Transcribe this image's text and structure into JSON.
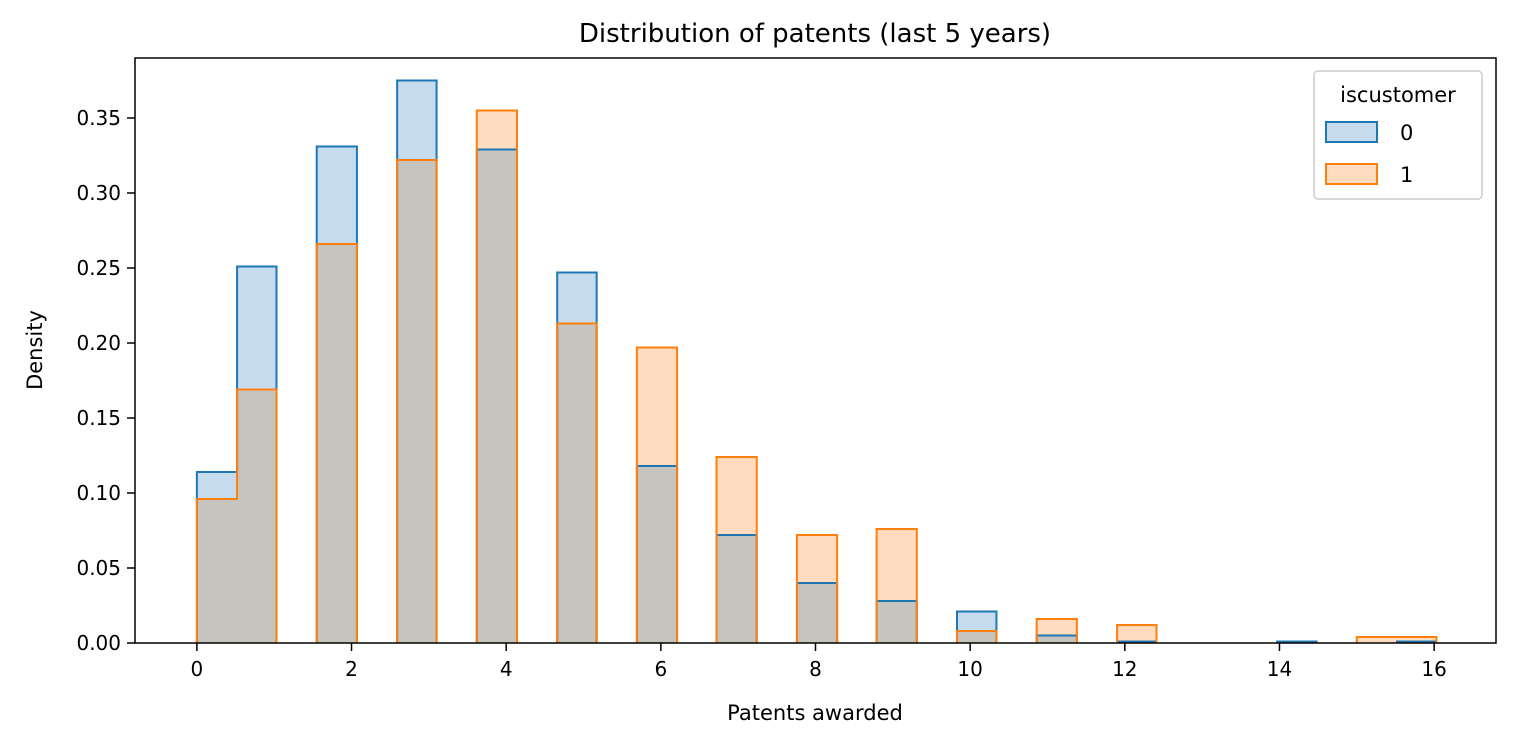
{
  "chart_data": {
    "type": "bar",
    "title": "Distribution of patents (last 5 years)",
    "xlabel": "Patents awarded",
    "ylabel": "Density",
    "xlim": [
      -0.8,
      16.8
    ],
    "ylim": [
      0,
      0.39
    ],
    "xticks": [
      "0",
      "2",
      "4",
      "6",
      "8",
      "10",
      "12",
      "14",
      "16"
    ],
    "xtick_values": [
      0,
      2,
      4,
      6,
      8,
      10,
      12,
      14,
      16
    ],
    "yticks": [
      "0.00",
      "0.05",
      "0.10",
      "0.15",
      "0.20",
      "0.25",
      "0.30",
      "0.35"
    ],
    "ytick_values": [
      0,
      0.05,
      0.1,
      0.15,
      0.2,
      0.25,
      0.3,
      0.35
    ],
    "grid": false,
    "legend": {
      "title": "iscustomer",
      "placement": "top-right"
    },
    "bins": [
      {
        "x0": 0.0,
        "x1": 0.52
      },
      {
        "x0": 0.52,
        "x1": 1.03
      },
      {
        "x0": 1.55,
        "x1": 2.07
      },
      {
        "x0": 2.59,
        "x1": 3.1
      },
      {
        "x0": 3.62,
        "x1": 4.14
      },
      {
        "x0": 4.66,
        "x1": 5.17
      },
      {
        "x0": 5.69,
        "x1": 6.21
      },
      {
        "x0": 6.72,
        "x1": 7.24
      },
      {
        "x0": 7.76,
        "x1": 8.28
      },
      {
        "x0": 8.79,
        "x1": 9.31
      },
      {
        "x0": 9.83,
        "x1": 10.34
      },
      {
        "x0": 10.86,
        "x1": 11.38
      },
      {
        "x0": 11.9,
        "x1": 12.41
      },
      {
        "x0": 12.93,
        "x1": 13.45
      },
      {
        "x0": 13.97,
        "x1": 14.48
      },
      {
        "x0": 15.0,
        "x1": 15.52
      },
      {
        "x0": 15.52,
        "x1": 16.03
      }
    ],
    "series": [
      {
        "name": "0",
        "edge_color": "#1f77b4",
        "fill_color": "#c6dcee",
        "values": [
          0.114,
          0.251,
          0.331,
          0.375,
          0.329,
          0.247,
          0.118,
          0.072,
          0.04,
          0.028,
          0.021,
          0.005,
          0.001,
          0.0,
          0.001,
          0.0,
          0.001
        ]
      },
      {
        "name": "1",
        "edge_color": "#ff7f0e",
        "fill_color": "#ffdcbf",
        "values": [
          0.096,
          0.169,
          0.266,
          0.322,
          0.355,
          0.213,
          0.197,
          0.124,
          0.072,
          0.076,
          0.008,
          0.016,
          0.012,
          0.0,
          0.0,
          0.004,
          0.004
        ]
      }
    ],
    "overlap_color": "#c5c4bf"
  }
}
